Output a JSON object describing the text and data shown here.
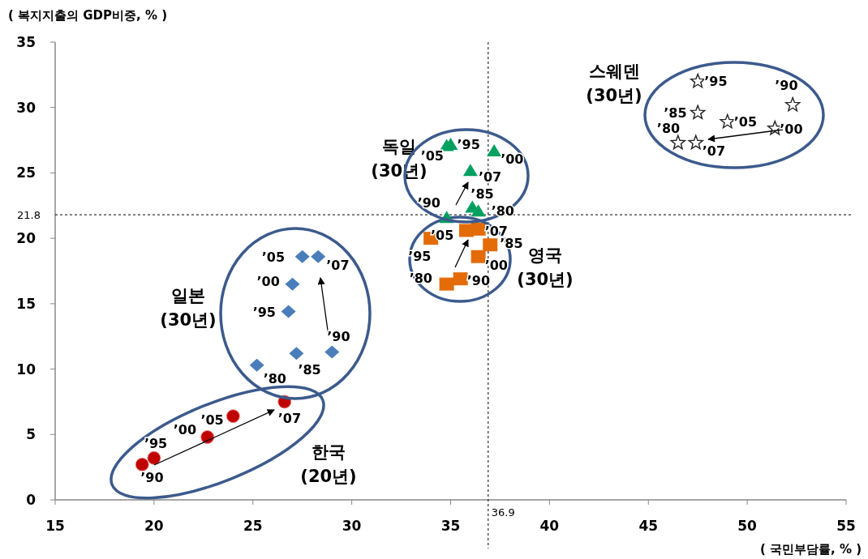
{
  "chart_data": {
    "type": "scatter",
    "ylabel": "( 복지지출의 GDP비중,  % )",
    "xlabel": "( 국민부담률,  % )",
    "xlim": [
      15,
      55
    ],
    "ylim": [
      0,
      35
    ],
    "xticks": [
      15,
      20,
      25,
      30,
      35,
      40,
      45,
      50,
      55
    ],
    "yticks": [
      0,
      5,
      10,
      15,
      20,
      25,
      30,
      35
    ],
    "grid": false,
    "legend": false,
    "ref_lines": [
      {
        "axis": "x",
        "value": 36.9,
        "label": "36.9",
        "line_style": "dashed",
        "color": "#000000"
      },
      {
        "axis": "y",
        "value": 21.8,
        "label": "21.8",
        "line_style": "dashed",
        "color": "#000000"
      }
    ],
    "series": [
      {
        "name": "한국 (20년)",
        "color": "#c00000",
        "marker": "circle",
        "x": [
          19.4,
          20.0,
          22.7,
          24.0,
          26.6
        ],
        "values": [
          2.7,
          3.2,
          4.8,
          6.4,
          7.5
        ]
      },
      {
        "name": "일본 (30년)",
        "color": "#4a7ebb",
        "marker": "diamond",
        "x": [
          25.2,
          27.2,
          29.0,
          26.8,
          27.0,
          27.5,
          28.3
        ],
        "values": [
          10.3,
          11.2,
          11.3,
          14.4,
          16.5,
          18.6,
          18.6
        ]
      },
      {
        "name": "영국 (30년)",
        "color": "#e36c09",
        "marker": "square",
        "x": [
          34.8,
          37.0,
          35.5,
          34.0,
          36.4,
          35.8,
          36.4
        ],
        "values": [
          16.5,
          19.5,
          16.9,
          20.0,
          18.6,
          20.6,
          20.7
        ]
      },
      {
        "name": "독일 (30년)",
        "color": "#00a060",
        "marker": "triangle",
        "x": [
          36.4,
          36.1,
          34.8,
          35.0,
          37.2,
          34.8,
          36.0
        ],
        "values": [
          22.1,
          22.4,
          21.6,
          27.2,
          26.7,
          27.1,
          25.2
        ]
      },
      {
        "name": "스웨덴 (30년)",
        "color": "#222222",
        "marker": "star",
        "x": [
          46.5,
          47.5,
          52.3,
          47.5,
          51.4,
          49.0,
          47.4
        ],
        "values": [
          27.3,
          29.6,
          30.2,
          32.0,
          28.4,
          28.9,
          27.3
        ]
      }
    ],
    "annotations": [
      {
        "text": "’90",
        "x": 19.4,
        "y": 2.7
      },
      {
        "text": "’95",
        "x": 20.0,
        "y": 3.2
      },
      {
        "text": "’00",
        "x": 22.7,
        "y": 4.8
      },
      {
        "text": "’05",
        "x": 24.0,
        "y": 6.4
      },
      {
        "text": "’07",
        "x": 26.6,
        "y": 7.5
      },
      {
        "text": "’80",
        "x": 25.2,
        "y": 10.3
      },
      {
        "text": "’85",
        "x": 27.2,
        "y": 11.2
      },
      {
        "text": "’90",
        "x": 29.0,
        "y": 11.3
      },
      {
        "text": "’95",
        "x": 26.8,
        "y": 14.4
      },
      {
        "text": "’00",
        "x": 27.0,
        "y": 16.5
      },
      {
        "text": "’05",
        "x": 27.5,
        "y": 18.6
      },
      {
        "text": "’07",
        "x": 28.3,
        "y": 18.6
      },
      {
        "text": "’80",
        "x": 34.8,
        "y": 16.5
      },
      {
        "text": "’85",
        "x": 37.0,
        "y": 19.5
      },
      {
        "text": "’90",
        "x": 35.5,
        "y": 16.9
      },
      {
        "text": "’95",
        "x": 34.0,
        "y": 20.0
      },
      {
        "text": "’00",
        "x": 36.4,
        "y": 18.6
      },
      {
        "text": "’05",
        "x": 35.8,
        "y": 20.6
      },
      {
        "text": "’07",
        "x": 36.4,
        "y": 20.7
      },
      {
        "text": "’80",
        "x": 36.4,
        "y": 22.1
      },
      {
        "text": "’85",
        "x": 36.1,
        "y": 22.4
      },
      {
        "text": "’90",
        "x": 34.8,
        "y": 21.6
      },
      {
        "text": "’95",
        "x": 35.0,
        "y": 27.2
      },
      {
        "text": "’00",
        "x": 37.2,
        "y": 26.7
      },
      {
        "text": "’05",
        "x": 34.8,
        "y": 27.1
      },
      {
        "text": "’07",
        "x": 36.0,
        "y": 25.2
      },
      {
        "text": "’80",
        "x": 46.5,
        "y": 27.3
      },
      {
        "text": "’85",
        "x": 47.5,
        "y": 29.6
      },
      {
        "text": "’90",
        "x": 52.3,
        "y": 30.2
      },
      {
        "text": "’95",
        "x": 47.5,
        "y": 32.0
      },
      {
        "text": "’00",
        "x": 51.4,
        "y": 28.4
      },
      {
        "text": "’05",
        "x": 49.0,
        "y": 28.9
      },
      {
        "text": "’07",
        "x": 47.4,
        "y": 27.3
      }
    ]
  }
}
